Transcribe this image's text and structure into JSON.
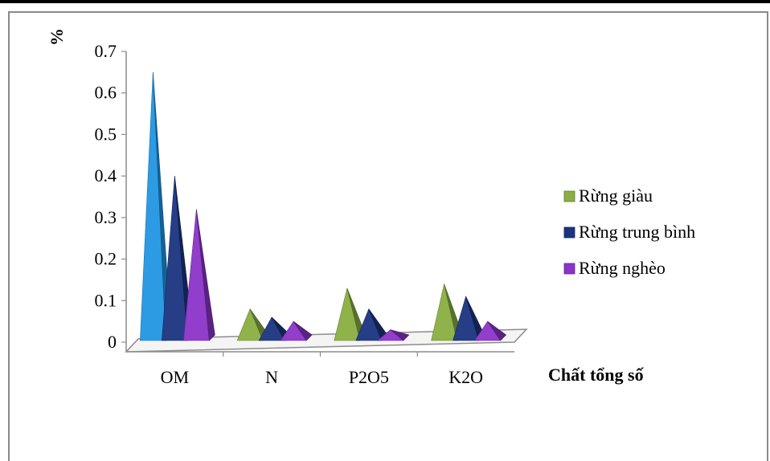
{
  "chart_data": {
    "type": "bar",
    "bar_shape": "pyramid-3d",
    "categories": [
      "OM",
      "N",
      "P2O5",
      "K2O"
    ],
    "series": [
      {
        "name": "Rừng giàu",
        "values": [
          0.65,
          0.08,
          0.13,
          0.14
        ],
        "color": "#8aae42"
      },
      {
        "name": "Rừng trung bình",
        "values": [
          0.4,
          0.06,
          0.08,
          0.11
        ],
        "color": "#1b3480"
      },
      {
        "name": "Rừng nghèo",
        "values": [
          0.32,
          0.05,
          0.03,
          0.05
        ],
        "color": "#8a34c8"
      }
    ],
    "highlight_color": "#2196e3",
    "ylabel": "%",
    "xlabel": "Chất tổng số",
    "ylim": [
      0,
      0.7
    ],
    "yticks": [
      "0",
      "0.1",
      "0.2",
      "0.3",
      "0.4",
      "0.5",
      "0.6",
      "0.7"
    ],
    "grid": false,
    "legend_position": "right"
  }
}
